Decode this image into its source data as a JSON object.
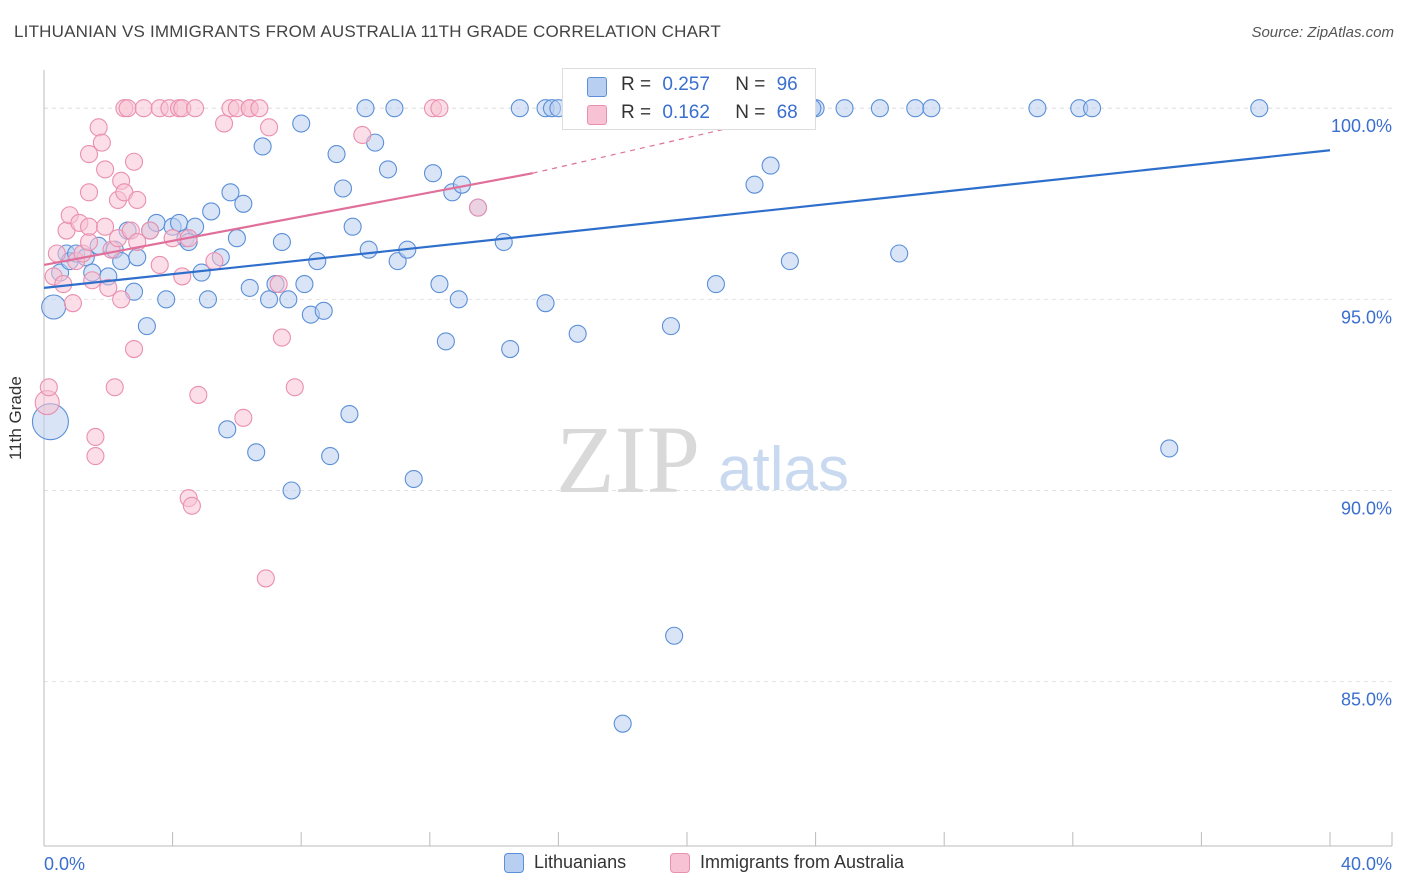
{
  "header": {
    "title": "LITHUANIAN VS IMMIGRANTS FROM AUSTRALIA 11TH GRADE CORRELATION CHART",
    "source": "Source: ZipAtlas.com"
  },
  "watermark": {
    "zip": "ZIP",
    "atlas": "atlas"
  },
  "stats": {
    "r_label": "R =",
    "n_label": "N =",
    "rows": [
      {
        "r": "0.257",
        "n": "96"
      },
      {
        "r": "0.162",
        "n": "68"
      }
    ]
  },
  "colors": {
    "blue": "#5b8fd8",
    "blue_fill": "#b9cff1",
    "blue_line": "#2f6fcc",
    "pink": "#ea8fb0",
    "pink_fill": "#f7c2d4",
    "pink_line": "#e0709a",
    "grid": "#e2e2e2",
    "tick_text": "#3a6fcf"
  },
  "chart_data": {
    "type": "scatter",
    "title": "LITHUANIAN VS IMMIGRANTS FROM AUSTRALIA 11TH GRADE CORRELATION CHART",
    "xlabel": "",
    "ylabel": "11th Grade",
    "xlim": [
      0,
      40
    ],
    "ylim": [
      80.7,
      101.0
    ],
    "x_tick_labels": [
      "0.0%",
      "40.0%"
    ],
    "y_ticks": [
      85,
      90,
      95,
      100
    ],
    "y_tick_labels": [
      "85.0%",
      "90.0%",
      "95.0%",
      "100.0%"
    ],
    "legend": [
      "Lithuanians",
      "Immigrants from Australia"
    ],
    "series": [
      {
        "name": "Lithuanians",
        "color": "#5b8fd8",
        "R": 0.257,
        "N": 96,
        "trend": {
          "x": [
            0,
            40
          ],
          "y": [
            95.3,
            98.9
          ]
        },
        "points": [
          [
            0.2,
            91.8,
            3
          ],
          [
            0.3,
            94.8,
            2
          ],
          [
            0.5,
            95.7,
            1
          ],
          [
            0.7,
            96.2,
            1
          ],
          [
            0.8,
            96.0,
            1
          ],
          [
            1.0,
            96.2,
            1
          ],
          [
            1.3,
            96.1,
            1
          ],
          [
            1.5,
            95.7,
            1
          ],
          [
            1.7,
            96.4,
            1
          ],
          [
            2.0,
            95.6,
            1
          ],
          [
            2.2,
            96.3,
            1
          ],
          [
            2.4,
            96.0,
            1
          ],
          [
            2.6,
            96.8,
            1
          ],
          [
            2.8,
            95.2,
            1
          ],
          [
            2.9,
            96.1,
            1
          ],
          [
            3.2,
            94.3,
            1
          ],
          [
            3.3,
            96.8,
            1
          ],
          [
            3.5,
            97.0,
            1
          ],
          [
            3.8,
            95.0,
            1
          ],
          [
            4.0,
            96.9,
            1
          ],
          [
            4.2,
            97.0,
            1
          ],
          [
            4.4,
            96.6,
            1
          ],
          [
            4.5,
            96.5,
            1
          ],
          [
            4.7,
            96.9,
            1
          ],
          [
            4.9,
            95.7,
            1
          ],
          [
            5.1,
            95.0,
            1
          ],
          [
            5.2,
            97.3,
            1
          ],
          [
            5.5,
            96.1,
            1
          ],
          [
            5.7,
            91.6,
            1
          ],
          [
            5.8,
            97.8,
            1
          ],
          [
            6.0,
            96.6,
            1
          ],
          [
            6.2,
            97.5,
            1
          ],
          [
            6.4,
            95.3,
            1
          ],
          [
            6.6,
            91.0,
            1
          ],
          [
            6.8,
            99.0,
            1
          ],
          [
            7.0,
            95.0,
            1
          ],
          [
            7.2,
            95.4,
            1
          ],
          [
            7.4,
            96.5,
            1
          ],
          [
            7.6,
            95.0,
            1
          ],
          [
            7.7,
            90.0,
            1
          ],
          [
            8.0,
            99.6,
            1
          ],
          [
            8.1,
            95.4,
            1
          ],
          [
            8.3,
            94.6,
            1
          ],
          [
            8.5,
            96.0,
            1
          ],
          [
            8.7,
            94.7,
            1
          ],
          [
            8.9,
            90.9,
            1
          ],
          [
            9.1,
            98.8,
            1
          ],
          [
            9.3,
            97.9,
            1
          ],
          [
            9.5,
            92.0,
            1
          ],
          [
            9.6,
            96.9,
            1
          ],
          [
            10.0,
            100.0,
            1
          ],
          [
            10.1,
            96.3,
            1
          ],
          [
            10.3,
            99.1,
            1
          ],
          [
            10.7,
            98.4,
            1
          ],
          [
            10.9,
            100.0,
            1
          ],
          [
            11.0,
            96.0,
            1
          ],
          [
            11.3,
            96.3,
            1
          ],
          [
            11.5,
            90.3,
            1
          ],
          [
            12.1,
            98.3,
            1
          ],
          [
            12.3,
            95.4,
            1
          ],
          [
            12.5,
            93.9,
            1
          ],
          [
            12.7,
            97.8,
            1
          ],
          [
            12.9,
            95.0,
            1
          ],
          [
            13.0,
            98.0,
            1
          ],
          [
            13.5,
            97.4,
            1
          ],
          [
            14.3,
            96.5,
            1
          ],
          [
            14.5,
            93.7,
            1
          ],
          [
            14.8,
            100.0,
            1
          ],
          [
            15.6,
            100.0,
            1
          ],
          [
            15.6,
            94.9,
            1
          ],
          [
            15.8,
            100.0,
            1
          ],
          [
            16.0,
            100.0,
            1
          ],
          [
            16.6,
            94.1,
            1
          ],
          [
            18.0,
            100.0,
            1
          ],
          [
            18.3,
            100.0,
            1
          ],
          [
            19.0,
            100.0,
            1
          ],
          [
            19.5,
            94.3,
            1
          ],
          [
            19.6,
            86.2,
            1
          ],
          [
            20.9,
            95.4,
            1
          ],
          [
            21.1,
            100.0,
            1
          ],
          [
            22.1,
            98.0,
            1
          ],
          [
            22.6,
            98.5,
            1
          ],
          [
            23.2,
            96.0,
            1
          ],
          [
            23.5,
            100.0,
            1
          ],
          [
            24.0,
            100.0,
            1
          ],
          [
            23.9,
            100.0,
            1
          ],
          [
            24.9,
            100.0,
            1
          ],
          [
            26.0,
            100.0,
            1
          ],
          [
            26.6,
            96.2,
            1
          ],
          [
            27.1,
            100.0,
            1
          ],
          [
            27.6,
            100.0,
            1
          ],
          [
            30.9,
            100.0,
            1
          ],
          [
            32.2,
            100.0,
            1
          ],
          [
            32.6,
            100.0,
            1
          ],
          [
            35.0,
            91.1,
            1
          ],
          [
            37.8,
            100.0,
            1
          ],
          [
            18.0,
            83.9,
            1
          ]
        ]
      },
      {
        "name": "Immigrants from Australia",
        "color": "#ea8fb0",
        "R": 0.162,
        "N": 68,
        "trend": {
          "x": [
            0,
            15.2
          ],
          "y": [
            95.9,
            98.3
          ]
        },
        "trend_dashed": {
          "x": [
            15.2,
            24.0
          ],
          "y": [
            98.3,
            100.0
          ]
        },
        "points": [
          [
            0.1,
            92.3,
            2
          ],
          [
            0.15,
            92.7,
            1
          ],
          [
            0.3,
            95.6,
            1
          ],
          [
            0.4,
            96.2,
            1
          ],
          [
            0.6,
            95.4,
            1
          ],
          [
            0.7,
            96.8,
            1
          ],
          [
            0.8,
            97.2,
            1
          ],
          [
            0.9,
            94.9,
            1
          ],
          [
            1.0,
            96.0,
            1
          ],
          [
            1.1,
            97.0,
            1
          ],
          [
            1.2,
            96.2,
            1
          ],
          [
            1.4,
            96.5,
            1
          ],
          [
            1.4,
            96.9,
            1
          ],
          [
            1.4,
            97.8,
            1
          ],
          [
            1.4,
            98.8,
            1
          ],
          [
            1.5,
            95.5,
            1
          ],
          [
            1.6,
            91.4,
            1
          ],
          [
            1.6,
            90.9,
            1
          ],
          [
            1.7,
            99.5,
            1
          ],
          [
            1.8,
            99.1,
            1
          ],
          [
            1.9,
            96.9,
            1
          ],
          [
            1.9,
            98.4,
            1
          ],
          [
            2.0,
            95.3,
            1
          ],
          [
            2.1,
            96.3,
            1
          ],
          [
            2.3,
            96.6,
            1
          ],
          [
            2.2,
            92.7,
            1
          ],
          [
            2.3,
            97.6,
            1
          ],
          [
            2.4,
            98.1,
            1
          ],
          [
            2.4,
            95.0,
            1
          ],
          [
            2.5,
            97.8,
            1
          ],
          [
            2.5,
            100.0,
            1
          ],
          [
            2.6,
            100.0,
            1
          ],
          [
            2.7,
            96.8,
            1
          ],
          [
            2.8,
            93.7,
            1
          ],
          [
            2.8,
            98.6,
            1
          ],
          [
            2.9,
            97.6,
            1
          ],
          [
            3.1,
            100.0,
            1
          ],
          [
            3.3,
            96.8,
            1
          ],
          [
            3.6,
            95.9,
            1
          ],
          [
            3.6,
            100.0,
            1
          ],
          [
            3.9,
            100.0,
            1
          ],
          [
            4.0,
            96.6,
            1
          ],
          [
            4.2,
            100.0,
            1
          ],
          [
            4.3,
            100.0,
            1
          ],
          [
            4.3,
            95.6,
            1
          ],
          [
            4.5,
            96.6,
            1
          ],
          [
            4.5,
            89.8,
            1
          ],
          [
            4.6,
            89.6,
            1
          ],
          [
            4.7,
            100.0,
            1
          ],
          [
            4.8,
            92.5,
            1
          ],
          [
            5.3,
            96.0,
            1
          ],
          [
            5.6,
            99.6,
            1
          ],
          [
            5.8,
            100.0,
            1
          ],
          [
            6.0,
            100.0,
            1
          ],
          [
            6.2,
            91.9,
            1
          ],
          [
            6.4,
            100.0,
            1
          ],
          [
            6.4,
            100.0,
            1
          ],
          [
            6.7,
            100.0,
            1
          ],
          [
            6.9,
            87.7,
            1
          ],
          [
            7.0,
            99.5,
            1
          ],
          [
            7.3,
            95.4,
            1
          ],
          [
            7.4,
            94.0,
            1
          ],
          [
            7.8,
            92.7,
            1
          ],
          [
            9.9,
            99.3,
            1
          ],
          [
            12.1,
            100.0,
            1
          ],
          [
            12.3,
            100.0,
            1
          ],
          [
            13.5,
            97.4,
            1
          ],
          [
            2.9,
            96.5,
            1
          ]
        ]
      }
    ]
  }
}
